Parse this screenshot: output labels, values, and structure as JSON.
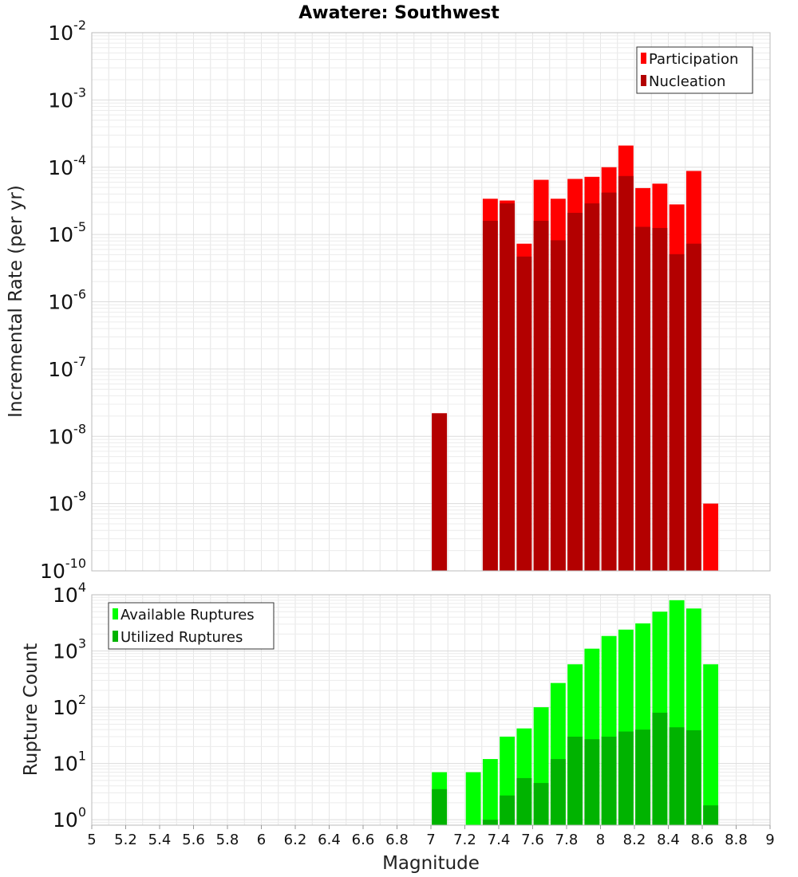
{
  "chart_data": [
    {
      "type": "bar",
      "title": "Awatere: Southwest",
      "xlabel": "Magnitude",
      "ylabel": "Incremental Rate (per yr)",
      "y_scale": "log",
      "ylim": [
        1e-10,
        0.01
      ],
      "xlim": [
        5,
        9
      ],
      "bin_width": 0.1,
      "x_ticks": [
        "5",
        "5.2",
        "5.4",
        "5.6",
        "5.8",
        "6",
        "6.2",
        "6.4",
        "6.6",
        "6.8",
        "7",
        "7.2",
        "7.4",
        "7.6",
        "7.8",
        "8",
        "8.2",
        "8.4",
        "8.6",
        "8.8",
        "9"
      ],
      "y_ticks": [
        {
          "base": "10",
          "exp": "-10",
          "value": 1e-10
        },
        {
          "base": "10",
          "exp": "-9",
          "value": 1e-09
        },
        {
          "base": "10",
          "exp": "-8",
          "value": 1e-08
        },
        {
          "base": "10",
          "exp": "-7",
          "value": 1e-07
        },
        {
          "base": "10",
          "exp": "-6",
          "value": 1e-06
        },
        {
          "base": "10",
          "exp": "-5",
          "value": 1e-05
        },
        {
          "base": "10",
          "exp": "-4",
          "value": 0.0001
        },
        {
          "base": "10",
          "exp": "-3",
          "value": 0.001
        },
        {
          "base": "10",
          "exp": "-2",
          "value": 0.01
        }
      ],
      "legend_position": "top-right",
      "series": [
        {
          "name": "Participation",
          "color": "#ff0000",
          "x": [
            7.05,
            7.35,
            7.45,
            7.55,
            7.65,
            7.75,
            7.85,
            7.95,
            8.05,
            8.15,
            8.25,
            8.35,
            8.45,
            8.55,
            8.65
          ],
          "values": [
            2.2e-08,
            3.4e-05,
            3.2e-05,
            7.3e-06,
            6.5e-05,
            3.4e-05,
            6.7e-05,
            7.2e-05,
            0.0001,
            0.00021,
            4.9e-05,
            5.7e-05,
            2.8e-05,
            8.8e-05,
            1e-09
          ]
        },
        {
          "name": "Nucleation",
          "color": "#b30000",
          "x": [
            7.05,
            7.35,
            7.45,
            7.55,
            7.65,
            7.75,
            7.85,
            7.95,
            8.05,
            8.15,
            8.25,
            8.35,
            8.45,
            8.55
          ],
          "values": [
            2.2e-08,
            1.6e-05,
            2.9e-05,
            4.7e-06,
            1.6e-05,
            8.2e-06,
            2.1e-05,
            2.9e-05,
            4.2e-05,
            7.4e-05,
            1.3e-05,
            1.25e-05,
            5.1e-06,
            7.3e-06
          ]
        }
      ]
    },
    {
      "type": "bar",
      "title": "",
      "xlabel": "Magnitude",
      "ylabel": "Rupture Count",
      "y_scale": "log",
      "ylim": [
        0.8,
        10000
      ],
      "xlim": [
        5,
        9
      ],
      "bin_width": 0.1,
      "x_ticks": [
        "5",
        "5.2",
        "5.4",
        "5.6",
        "5.8",
        "6",
        "6.2",
        "6.4",
        "6.6",
        "6.8",
        "7",
        "7.2",
        "7.4",
        "7.6",
        "7.8",
        "8",
        "8.2",
        "8.4",
        "8.6",
        "8.8",
        "9"
      ],
      "y_ticks": [
        {
          "base": "10",
          "exp": "0",
          "value": 1
        },
        {
          "base": "10",
          "exp": "1",
          "value": 10
        },
        {
          "base": "10",
          "exp": "2",
          "value": 100
        },
        {
          "base": "10",
          "exp": "3",
          "value": 1000
        },
        {
          "base": "10",
          "exp": "4",
          "value": 10000
        }
      ],
      "legend_position": "top-left",
      "series": [
        {
          "name": "Available Ruptures",
          "color": "#00ff00",
          "x": [
            7.05,
            7.25,
            7.35,
            7.45,
            7.55,
            7.65,
            7.75,
            7.85,
            7.95,
            8.05,
            8.15,
            8.25,
            8.35,
            8.45,
            8.55,
            8.65
          ],
          "values": [
            7,
            7,
            12,
            30,
            42,
            100,
            270,
            580,
            1100,
            1850,
            2400,
            3100,
            5000,
            8000,
            5700,
            580
          ]
        },
        {
          "name": "Utilized Ruptures",
          "color": "#00b300",
          "x": [
            7.05,
            7.35,
            7.45,
            7.55,
            7.65,
            7.75,
            7.85,
            7.95,
            8.05,
            8.15,
            8.25,
            8.35,
            8.45,
            8.55,
            8.65
          ],
          "values": [
            3.5,
            1,
            2.7,
            5.5,
            4.5,
            12,
            30,
            27,
            30,
            37,
            40,
            80,
            44,
            39,
            1.8
          ]
        }
      ]
    }
  ]
}
